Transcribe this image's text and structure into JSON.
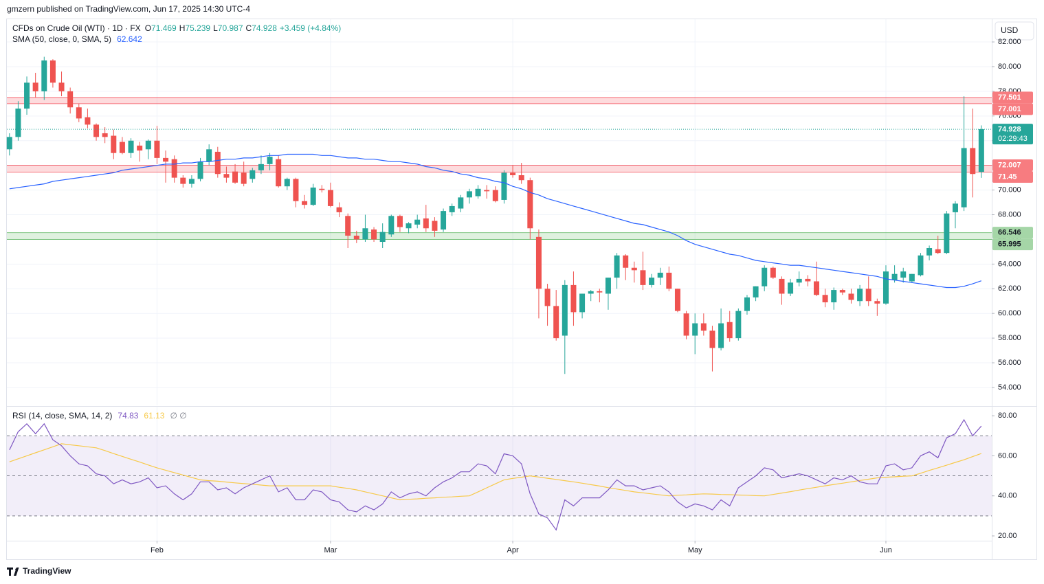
{
  "header": {
    "publisher": "gmzern published on TradingView.com, Jun 17, 2025 14:30 UTC-4",
    "currency": "USD",
    "brand": "TradingView"
  },
  "chart_data": [
    {
      "type": "candlestick",
      "title": "CFDs on Crude Oil (WTI) · 1D · FX",
      "ohlc_labels": [
        "O",
        "H",
        "L",
        "C"
      ],
      "change": "+3.459 (+4.84%)",
      "countdown": "02:29:43",
      "up_color": "#26a69a",
      "down_color": "#ef5350",
      "open": [
        73.3,
        74.3,
        76.6,
        78.7,
        78.0,
        80.5,
        78.7,
        78.0,
        76.7,
        75.9,
        75.3,
        74.6,
        74.4,
        73.9,
        73.0,
        73.6,
        73.3,
        74.0,
        72.6,
        72.5,
        71.0,
        70.5,
        70.9,
        72.3,
        73.1,
        71.3,
        71.5,
        71.4,
        70.9,
        71.6,
        72.1,
        72.5,
        70.3,
        70.9,
        69.1,
        68.8,
        70.1,
        70.0,
        68.6,
        67.9,
        66.3,
        66.0,
        66.8,
        65.8,
        66.4,
        67.9,
        66.9,
        67.2,
        67.7,
        67.5,
        66.8,
        68.2,
        68.5,
        69.4,
        69.5,
        70.0,
        70.0,
        69.2,
        71.4,
        71.2,
        70.8,
        66.2,
        62.0,
        60.6,
        58.2,
        62.3,
        60.1,
        61.6,
        61.8,
        61.6,
        62.9,
        64.7,
        63.7,
        63.5,
        62.3,
        62.9,
        63.3,
        62.0,
        60.0,
        58.2,
        59.2,
        58.6,
        57.2,
        59.3,
        58.0,
        60.2,
        61.3,
        62.2,
        63.7,
        62.8,
        61.6,
        62.5,
        62.8,
        62.6,
        61.5,
        60.9,
        61.9,
        61.6,
        61.0,
        62.0,
        61.0,
        60.8,
        62.7,
        62.9,
        62.6,
        63.1,
        64.7,
        65.2,
        64.9,
        68.2,
        68.6,
        73.4,
        71.469
      ],
      "high": [
        74.6,
        77.2,
        79.2,
        79.5,
        80.8,
        80.6,
        79.6,
        78.3,
        77.0,
        76.6,
        75.4,
        75.1,
        74.9,
        74.3,
        74.2,
        73.9,
        74.1,
        75.2,
        73.2,
        72.8,
        71.2,
        71.2,
        72.6,
        73.7,
        73.5,
        71.9,
        72.1,
        72.3,
        71.8,
        72.8,
        73.0,
        72.8,
        71.0,
        71.0,
        69.6,
        70.5,
        70.4,
        70.6,
        69.0,
        68.1,
        66.7,
        68.0,
        67.0,
        67.3,
        68.0,
        68.0,
        67.4,
        68.0,
        68.8,
        67.8,
        68.5,
        68.9,
        69.6,
        70.1,
        70.4,
        70.4,
        70.3,
        71.6,
        72.0,
        72.2,
        71.0,
        66.8,
        62.4,
        61.9,
        62.7,
        63.4,
        61.6,
        61.9,
        62.0,
        62.9,
        64.9,
        64.8,
        64.2,
        65.0,
        63.2,
        63.7,
        63.8,
        62.0,
        60.2,
        60.0,
        60.0,
        59.0,
        60.4,
        60.2,
        60.4,
        61.5,
        62.2,
        63.9,
        63.8,
        63.0,
        62.8,
        63.4,
        63.1,
        64.2,
        62.0,
        62.1,
        62.0,
        62.0,
        62.3,
        63.0,
        61.2,
        63.9,
        63.9,
        63.7,
        63.2,
        64.9,
        65.5,
        66.3,
        68.3,
        69.1,
        77.6,
        76.6,
        75.239
      ],
      "low": [
        72.8,
        74.0,
        76.1,
        77.5,
        77.3,
        78.3,
        77.6,
        76.2,
        75.5,
        75.0,
        74.0,
        73.8,
        72.5,
        72.9,
        72.6,
        72.3,
        72.5,
        72.1,
        70.6,
        70.6,
        70.2,
        70.2,
        70.7,
        72.0,
        71.0,
        70.6,
        70.5,
        70.3,
        70.6,
        71.3,
        71.6,
        70.2,
        70.0,
        68.6,
        68.5,
        68.7,
        69.8,
        68.6,
        67.8,
        65.3,
        65.7,
        65.8,
        65.8,
        65.3,
        66.2,
        66.6,
        66.5,
        66.9,
        66.6,
        66.2,
        66.6,
        67.9,
        68.2,
        68.9,
        69.3,
        69.3,
        69.0,
        68.9,
        71.0,
        70.5,
        66.0,
        59.6,
        59.0,
        57.8,
        55.1,
        59.0,
        59.6,
        61.0,
        60.9,
        60.3,
        62.0,
        62.7,
        62.5,
        61.9,
        62.1,
        62.3,
        61.8,
        60.1,
        57.9,
        56.7,
        58.2,
        55.3,
        57.0,
        57.7,
        57.8,
        59.9,
        61.0,
        61.8,
        62.8,
        60.7,
        61.4,
        62.2,
        62.2,
        61.4,
        60.5,
        60.3,
        61.5,
        60.8,
        60.6,
        60.6,
        59.8,
        60.7,
        62.5,
        62.5,
        62.5,
        63.0,
        64.3,
        64.8,
        64.8,
        66.9,
        68.3,
        69.4,
        70.987
      ],
      "close": [
        74.3,
        76.6,
        78.7,
        78.0,
        80.5,
        78.7,
        78.0,
        76.7,
        75.8,
        75.3,
        74.3,
        74.3,
        73.0,
        73.0,
        74.0,
        73.2,
        74.0,
        72.6,
        72.3,
        71.0,
        70.5,
        70.9,
        72.3,
        73.3,
        71.3,
        71.0,
        70.6,
        70.5,
        71.6,
        72.1,
        72.7,
        70.3,
        70.9,
        69.1,
        68.8,
        70.2,
        70.0,
        68.7,
        68.2,
        66.3,
        66.0,
        66.9,
        66.0,
        66.6,
        67.9,
        67.0,
        67.3,
        67.6,
        66.9,
        66.7,
        68.3,
        68.7,
        69.4,
        69.9,
        70.1,
        69.9,
        69.1,
        71.4,
        71.2,
        70.8,
        66.9,
        62.0,
        60.6,
        58.0,
        62.3,
        60.1,
        61.6,
        61.8,
        61.7,
        62.9,
        64.7,
        63.7,
        63.5,
        62.3,
        62.9,
        63.3,
        62.0,
        60.2,
        58.2,
        59.2,
        58.6,
        57.2,
        59.2,
        58.0,
        60.2,
        61.3,
        62.2,
        63.7,
        62.9,
        61.6,
        62.5,
        62.8,
        62.6,
        61.5,
        60.9,
        61.9,
        61.7,
        61.1,
        62.0,
        61.0,
        60.8,
        63.4,
        63.2,
        63.4,
        63.2,
        64.7,
        65.3,
        64.9,
        68.1,
        68.9,
        73.4,
        71.3,
        74.928
      ],
      "overlays": [
        {
          "name": "SMA (50, close, 0, SMA, 5)",
          "color": "#2962ff",
          "values": [
            70.1,
            70.2,
            70.3,
            70.4,
            70.5,
            70.7,
            70.8,
            70.9,
            71.0,
            71.1,
            71.2,
            71.3,
            71.4,
            71.6,
            71.7,
            71.8,
            71.9,
            72.0,
            72.1,
            72.1,
            72.2,
            72.2,
            72.3,
            72.3,
            72.4,
            72.5,
            72.5,
            72.6,
            72.6,
            72.7,
            72.8,
            72.8,
            72.9,
            72.9,
            72.9,
            72.9,
            72.8,
            72.8,
            72.7,
            72.6,
            72.6,
            72.5,
            72.5,
            72.4,
            72.3,
            72.3,
            72.2,
            72.1,
            71.9,
            71.8,
            71.6,
            71.5,
            71.3,
            71.2,
            71.0,
            70.9,
            70.7,
            70.6,
            70.3,
            70.1,
            69.8,
            69.6,
            69.3,
            69.1,
            68.9,
            68.7,
            68.5,
            68.3,
            68.1,
            67.9,
            67.7,
            67.5,
            67.3,
            67.2,
            67.0,
            66.8,
            66.6,
            66.3,
            65.9,
            65.6,
            65.4,
            65.2,
            65.0,
            64.8,
            64.7,
            64.5,
            64.3,
            64.2,
            64.1,
            64.0,
            63.9,
            63.9,
            63.8,
            63.7,
            63.6,
            63.5,
            63.4,
            63.3,
            63.2,
            63.1,
            63.0,
            62.8,
            62.7,
            62.6,
            62.5,
            62.4,
            62.3,
            62.2,
            62.1,
            62.1,
            62.2,
            62.4,
            62.642
          ]
        }
      ],
      "zones": [
        {
          "from": 77.001,
          "to": 77.501,
          "color": "#f23645"
        },
        {
          "from": 71.45,
          "to": 72.007,
          "color": "#f23645"
        },
        {
          "from": 65.995,
          "to": 66.546,
          "color": "#4caf50"
        }
      ],
      "xlim": [
        -0.3,
        113.2
      ],
      "xticks": [
        {
          "value": 17,
          "label": "Feb"
        },
        {
          "value": 37,
          "label": "Mar"
        },
        {
          "value": 58,
          "label": "Apr"
        },
        {
          "value": 79,
          "label": "May"
        },
        {
          "value": 101,
          "label": "Jun"
        }
      ],
      "ylim": [
        52.55,
        83.84
      ],
      "yticks": [
        {
          "value": 54,
          "label": "54.000"
        },
        {
          "value": 56,
          "label": "56.000"
        },
        {
          "value": 58,
          "label": "58.000"
        },
        {
          "value": 60,
          "label": "60.000"
        },
        {
          "value": 62,
          "label": "62.000"
        },
        {
          "value": 64,
          "label": "64.000"
        },
        {
          "value": 66,
          "label": "66.000"
        },
        {
          "value": 68,
          "label": "68.000"
        },
        {
          "value": 70,
          "label": "70.000"
        },
        {
          "value": 72,
          "label": "72.000"
        },
        {
          "value": 74,
          "label": "74.000"
        },
        {
          "value": 76,
          "label": "76.000"
        },
        {
          "value": 78,
          "label": "78.000"
        },
        {
          "value": 80,
          "label": "80.000"
        },
        {
          "value": 82,
          "label": "82.000"
        }
      ],
      "grid": true
    },
    {
      "type": "line",
      "title": "RSI (14, close, SMA, 14, 2)",
      "symbols": "∅ ∅",
      "series": [
        {
          "color": "#7e57c2",
          "values": [
            63,
            72,
            76,
            71,
            76,
            68,
            65,
            60,
            56,
            55,
            51,
            50,
            46,
            48,
            46,
            47,
            49,
            44,
            45,
            41,
            38,
            41,
            47,
            47,
            43,
            44,
            41,
            44,
            46,
            48,
            50,
            42,
            44,
            38,
            38,
            43,
            42,
            38,
            37,
            33,
            32,
            35,
            33,
            36,
            42,
            39,
            41,
            42,
            40,
            44,
            47,
            49,
            52,
            52,
            56,
            55,
            51,
            61,
            60,
            56,
            41,
            31,
            29,
            23,
            38,
            35,
            39,
            39,
            39,
            43,
            48,
            45,
            45,
            43,
            44,
            45,
            42,
            37,
            34,
            36,
            35,
            33,
            38,
            35,
            44,
            47,
            50,
            54,
            53,
            49,
            50,
            51,
            50,
            48,
            46,
            49,
            48,
            50,
            47,
            46,
            46,
            55,
            56,
            53,
            54,
            60,
            62,
            59,
            69,
            71,
            78,
            70,
            74.83
          ]
        },
        {
          "color": "#f7c948",
          "values": [
            57,
            58.5,
            60,
            61.5,
            63,
            64.5,
            66,
            65.5,
            65,
            64.5,
            64,
            62.6,
            61.1,
            59.7,
            58.3,
            56.9,
            55.4,
            54,
            52.8,
            51.6,
            50.4,
            49.2,
            48,
            47.6,
            47.3,
            46.9,
            46.5,
            46.1,
            45.8,
            45.4,
            45,
            45,
            45,
            45,
            45,
            45,
            45,
            45,
            44.3,
            43.7,
            43,
            42,
            41,
            40,
            39,
            38,
            38.3,
            38.5,
            38.8,
            39,
            39.3,
            39.5,
            39.8,
            40,
            42,
            44,
            46,
            48,
            48.7,
            49.3,
            50,
            49.4,
            48.8,
            48.2,
            47.6,
            47,
            46.3,
            45.6,
            44.9,
            44.1,
            43.4,
            42.7,
            42,
            41.5,
            41,
            40.5,
            40,
            40.3,
            40.5,
            40.8,
            41,
            40.9,
            40.7,
            40.6,
            40.4,
            40.3,
            40.1,
            40,
            40.7,
            41.4,
            42.1,
            42.9,
            43.6,
            44.3,
            45,
            45.7,
            46.3,
            47,
            47.7,
            48.3,
            49,
            49.3,
            49.5,
            49.8,
            50,
            51.3,
            52.7,
            54,
            55.3,
            56.7,
            58,
            59.6,
            61.13
          ]
        }
      ],
      "levels": [
        70,
        50,
        30
      ],
      "band": [
        30,
        70
      ],
      "ylim": [
        17.6,
        84.5
      ],
      "yticks": [
        {
          "value": 20,
          "label": "20.00"
        },
        {
          "value": 40,
          "label": "40.00"
        },
        {
          "value": 60,
          "label": "60.00"
        },
        {
          "value": 80,
          "label": "80.00"
        }
      ]
    }
  ]
}
